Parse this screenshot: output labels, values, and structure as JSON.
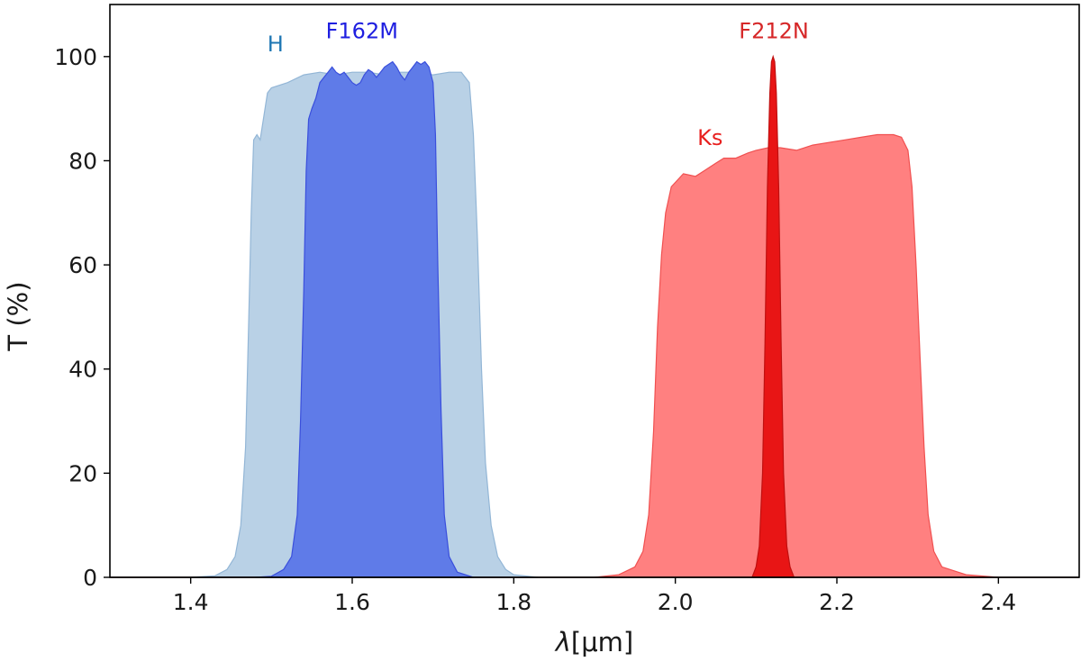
{
  "chart_data": {
    "type": "area",
    "title": "",
    "xlabel_prefix": "λ",
    "xlabel_unit": "[μm]",
    "ylabel": "T (%)",
    "xlim": [
      1.3,
      2.5
    ],
    "ylim": [
      0,
      110
    ],
    "x_ticks": [
      "1.4",
      "1.6",
      "1.8",
      "2.0",
      "2.2",
      "2.4"
    ],
    "y_ticks": [
      "0",
      "20",
      "40",
      "60",
      "80",
      "100"
    ],
    "grid": false,
    "legend": "none",
    "series": [
      {
        "name": "H",
        "color": "#1f77b4",
        "fill": "#b9d1e6",
        "stroke": "#93b6d6",
        "label_at": [
          1.505,
          101
        ],
        "points": [
          [
            1.4,
            0
          ],
          [
            1.43,
            0.3
          ],
          [
            1.445,
            1.5
          ],
          [
            1.455,
            4
          ],
          [
            1.462,
            10
          ],
          [
            1.468,
            25
          ],
          [
            1.472,
            50
          ],
          [
            1.475,
            70
          ],
          [
            1.478,
            84
          ],
          [
            1.482,
            85
          ],
          [
            1.486,
            84
          ],
          [
            1.49,
            88
          ],
          [
            1.495,
            93
          ],
          [
            1.5,
            94
          ],
          [
            1.52,
            95
          ],
          [
            1.54,
            96.5
          ],
          [
            1.56,
            97
          ],
          [
            1.58,
            96.5
          ],
          [
            1.6,
            97
          ],
          [
            1.62,
            97
          ],
          [
            1.64,
            96.5
          ],
          [
            1.66,
            97
          ],
          [
            1.68,
            97
          ],
          [
            1.7,
            96.5
          ],
          [
            1.72,
            97
          ],
          [
            1.735,
            97
          ],
          [
            1.745,
            95
          ],
          [
            1.75,
            85
          ],
          [
            1.755,
            65
          ],
          [
            1.76,
            40
          ],
          [
            1.765,
            22
          ],
          [
            1.772,
            10
          ],
          [
            1.78,
            4
          ],
          [
            1.79,
            1.5
          ],
          [
            1.8,
            0.5
          ],
          [
            1.83,
            0
          ]
        ]
      },
      {
        "name": "F162M",
        "color": "#1f1fe0",
        "fill": "#5f7be8",
        "stroke": "#3a4fdc",
        "label_at": [
          1.612,
          103.5
        ],
        "points": [
          [
            1.48,
            0
          ],
          [
            1.5,
            0.2
          ],
          [
            1.515,
            1.5
          ],
          [
            1.525,
            4
          ],
          [
            1.532,
            12
          ],
          [
            1.536,
            30
          ],
          [
            1.54,
            55
          ],
          [
            1.543,
            78
          ],
          [
            1.546,
            88
          ],
          [
            1.55,
            90
          ],
          [
            1.555,
            92
          ],
          [
            1.56,
            95
          ],
          [
            1.565,
            96
          ],
          [
            1.57,
            97
          ],
          [
            1.575,
            98
          ],
          [
            1.58,
            97
          ],
          [
            1.585,
            96.5
          ],
          [
            1.59,
            97
          ],
          [
            1.595,
            96
          ],
          [
            1.6,
            95
          ],
          [
            1.605,
            94.5
          ],
          [
            1.61,
            95
          ],
          [
            1.615,
            96.5
          ],
          [
            1.62,
            97.5
          ],
          [
            1.625,
            97
          ],
          [
            1.63,
            96
          ],
          [
            1.635,
            97
          ],
          [
            1.64,
            98
          ],
          [
            1.645,
            98.5
          ],
          [
            1.65,
            99
          ],
          [
            1.655,
            98
          ],
          [
            1.66,
            96.5
          ],
          [
            1.665,
            95.5
          ],
          [
            1.67,
            97
          ],
          [
            1.675,
            98
          ],
          [
            1.68,
            99
          ],
          [
            1.685,
            98.5
          ],
          [
            1.69,
            99
          ],
          [
            1.695,
            98
          ],
          [
            1.7,
            95
          ],
          [
            1.703,
            85
          ],
          [
            1.706,
            60
          ],
          [
            1.71,
            32
          ],
          [
            1.714,
            12
          ],
          [
            1.72,
            4
          ],
          [
            1.73,
            1
          ],
          [
            1.75,
            0
          ]
        ]
      },
      {
        "name": "Ks",
        "color": "#e8201f",
        "fill": "#ff8080",
        "stroke": "#f05050",
        "label_at": [
          2.043,
          83
        ],
        "points": [
          [
            1.9,
            0
          ],
          [
            1.93,
            0.5
          ],
          [
            1.95,
            2
          ],
          [
            1.96,
            5
          ],
          [
            1.967,
            12
          ],
          [
            1.973,
            28
          ],
          [
            1.978,
            48
          ],
          [
            1.983,
            62
          ],
          [
            1.988,
            70
          ],
          [
            1.995,
            75
          ],
          [
            2.01,
            77.5
          ],
          [
            2.025,
            77
          ],
          [
            2.035,
            78
          ],
          [
            2.05,
            79.5
          ],
          [
            2.06,
            80.5
          ],
          [
            2.075,
            80.5
          ],
          [
            2.09,
            81.5
          ],
          [
            2.1,
            82
          ],
          [
            2.115,
            82.5
          ],
          [
            2.13,
            82.5
          ],
          [
            2.15,
            82
          ],
          [
            2.17,
            83
          ],
          [
            2.19,
            83.5
          ],
          [
            2.21,
            84
          ],
          [
            2.23,
            84.5
          ],
          [
            2.25,
            85
          ],
          [
            2.27,
            85
          ],
          [
            2.28,
            84.5
          ],
          [
            2.288,
            82
          ],
          [
            2.293,
            75
          ],
          [
            2.298,
            60
          ],
          [
            2.303,
            42
          ],
          [
            2.308,
            25
          ],
          [
            2.313,
            12
          ],
          [
            2.32,
            5
          ],
          [
            2.33,
            2
          ],
          [
            2.36,
            0.5
          ],
          [
            2.4,
            0
          ]
        ]
      },
      {
        "name": "F212N",
        "color": "#d62728",
        "fill": "#e81515",
        "stroke": "#c01010",
        "label_at": [
          2.122,
          103.5
        ],
        "points": [
          [
            2.095,
            0
          ],
          [
            2.1,
            2
          ],
          [
            2.104,
            6
          ],
          [
            2.108,
            20
          ],
          [
            2.111,
            45
          ],
          [
            2.114,
            75
          ],
          [
            2.117,
            93
          ],
          [
            2.119,
            99
          ],
          [
            2.121,
            100
          ],
          [
            2.123,
            99
          ],
          [
            2.125,
            93
          ],
          [
            2.128,
            75
          ],
          [
            2.131,
            45
          ],
          [
            2.134,
            20
          ],
          [
            2.138,
            6
          ],
          [
            2.142,
            2
          ],
          [
            2.147,
            0
          ]
        ]
      }
    ]
  }
}
